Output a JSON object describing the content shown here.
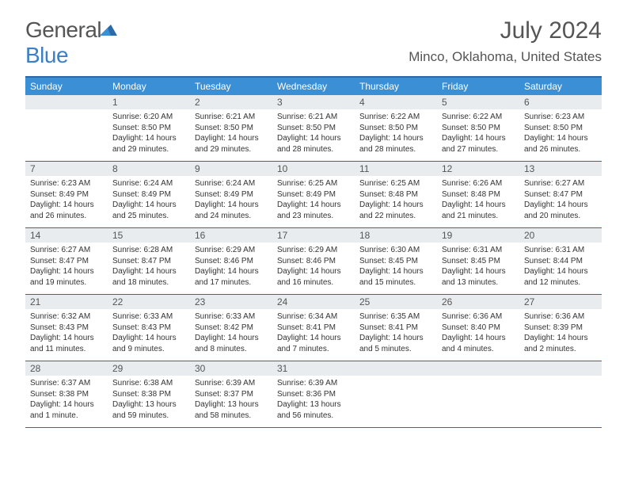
{
  "logo": {
    "text1": "General",
    "text2": "Blue"
  },
  "title": {
    "month_year": "July 2024",
    "location": "Minco, Oklahoma, United States"
  },
  "colors": {
    "header_bg": "#3b8fd4",
    "border": "#2b6aa8",
    "daynum_bg": "#e9ecee",
    "text": "#333333",
    "logo_gray": "#555555",
    "logo_blue": "#3b7fc4"
  },
  "day_names": [
    "Sunday",
    "Monday",
    "Tuesday",
    "Wednesday",
    "Thursday",
    "Friday",
    "Saturday"
  ],
  "weeks": [
    [
      {
        "n": "",
        "sunrise": "",
        "sunset": "",
        "daylight": ""
      },
      {
        "n": "1",
        "sunrise": "Sunrise: 6:20 AM",
        "sunset": "Sunset: 8:50 PM",
        "daylight": "Daylight: 14 hours and 29 minutes."
      },
      {
        "n": "2",
        "sunrise": "Sunrise: 6:21 AM",
        "sunset": "Sunset: 8:50 PM",
        "daylight": "Daylight: 14 hours and 29 minutes."
      },
      {
        "n": "3",
        "sunrise": "Sunrise: 6:21 AM",
        "sunset": "Sunset: 8:50 PM",
        "daylight": "Daylight: 14 hours and 28 minutes."
      },
      {
        "n": "4",
        "sunrise": "Sunrise: 6:22 AM",
        "sunset": "Sunset: 8:50 PM",
        "daylight": "Daylight: 14 hours and 28 minutes."
      },
      {
        "n": "5",
        "sunrise": "Sunrise: 6:22 AM",
        "sunset": "Sunset: 8:50 PM",
        "daylight": "Daylight: 14 hours and 27 minutes."
      },
      {
        "n": "6",
        "sunrise": "Sunrise: 6:23 AM",
        "sunset": "Sunset: 8:50 PM",
        "daylight": "Daylight: 14 hours and 26 minutes."
      }
    ],
    [
      {
        "n": "7",
        "sunrise": "Sunrise: 6:23 AM",
        "sunset": "Sunset: 8:49 PM",
        "daylight": "Daylight: 14 hours and 26 minutes."
      },
      {
        "n": "8",
        "sunrise": "Sunrise: 6:24 AM",
        "sunset": "Sunset: 8:49 PM",
        "daylight": "Daylight: 14 hours and 25 minutes."
      },
      {
        "n": "9",
        "sunrise": "Sunrise: 6:24 AM",
        "sunset": "Sunset: 8:49 PM",
        "daylight": "Daylight: 14 hours and 24 minutes."
      },
      {
        "n": "10",
        "sunrise": "Sunrise: 6:25 AM",
        "sunset": "Sunset: 8:49 PM",
        "daylight": "Daylight: 14 hours and 23 minutes."
      },
      {
        "n": "11",
        "sunrise": "Sunrise: 6:25 AM",
        "sunset": "Sunset: 8:48 PM",
        "daylight": "Daylight: 14 hours and 22 minutes."
      },
      {
        "n": "12",
        "sunrise": "Sunrise: 6:26 AM",
        "sunset": "Sunset: 8:48 PM",
        "daylight": "Daylight: 14 hours and 21 minutes."
      },
      {
        "n": "13",
        "sunrise": "Sunrise: 6:27 AM",
        "sunset": "Sunset: 8:47 PM",
        "daylight": "Daylight: 14 hours and 20 minutes."
      }
    ],
    [
      {
        "n": "14",
        "sunrise": "Sunrise: 6:27 AM",
        "sunset": "Sunset: 8:47 PM",
        "daylight": "Daylight: 14 hours and 19 minutes."
      },
      {
        "n": "15",
        "sunrise": "Sunrise: 6:28 AM",
        "sunset": "Sunset: 8:47 PM",
        "daylight": "Daylight: 14 hours and 18 minutes."
      },
      {
        "n": "16",
        "sunrise": "Sunrise: 6:29 AM",
        "sunset": "Sunset: 8:46 PM",
        "daylight": "Daylight: 14 hours and 17 minutes."
      },
      {
        "n": "17",
        "sunrise": "Sunrise: 6:29 AM",
        "sunset": "Sunset: 8:46 PM",
        "daylight": "Daylight: 14 hours and 16 minutes."
      },
      {
        "n": "18",
        "sunrise": "Sunrise: 6:30 AM",
        "sunset": "Sunset: 8:45 PM",
        "daylight": "Daylight: 14 hours and 15 minutes."
      },
      {
        "n": "19",
        "sunrise": "Sunrise: 6:31 AM",
        "sunset": "Sunset: 8:45 PM",
        "daylight": "Daylight: 14 hours and 13 minutes."
      },
      {
        "n": "20",
        "sunrise": "Sunrise: 6:31 AM",
        "sunset": "Sunset: 8:44 PM",
        "daylight": "Daylight: 14 hours and 12 minutes."
      }
    ],
    [
      {
        "n": "21",
        "sunrise": "Sunrise: 6:32 AM",
        "sunset": "Sunset: 8:43 PM",
        "daylight": "Daylight: 14 hours and 11 minutes."
      },
      {
        "n": "22",
        "sunrise": "Sunrise: 6:33 AM",
        "sunset": "Sunset: 8:43 PM",
        "daylight": "Daylight: 14 hours and 9 minutes."
      },
      {
        "n": "23",
        "sunrise": "Sunrise: 6:33 AM",
        "sunset": "Sunset: 8:42 PM",
        "daylight": "Daylight: 14 hours and 8 minutes."
      },
      {
        "n": "24",
        "sunrise": "Sunrise: 6:34 AM",
        "sunset": "Sunset: 8:41 PM",
        "daylight": "Daylight: 14 hours and 7 minutes."
      },
      {
        "n": "25",
        "sunrise": "Sunrise: 6:35 AM",
        "sunset": "Sunset: 8:41 PM",
        "daylight": "Daylight: 14 hours and 5 minutes."
      },
      {
        "n": "26",
        "sunrise": "Sunrise: 6:36 AM",
        "sunset": "Sunset: 8:40 PM",
        "daylight": "Daylight: 14 hours and 4 minutes."
      },
      {
        "n": "27",
        "sunrise": "Sunrise: 6:36 AM",
        "sunset": "Sunset: 8:39 PM",
        "daylight": "Daylight: 14 hours and 2 minutes."
      }
    ],
    [
      {
        "n": "28",
        "sunrise": "Sunrise: 6:37 AM",
        "sunset": "Sunset: 8:38 PM",
        "daylight": "Daylight: 14 hours and 1 minute."
      },
      {
        "n": "29",
        "sunrise": "Sunrise: 6:38 AM",
        "sunset": "Sunset: 8:38 PM",
        "daylight": "Daylight: 13 hours and 59 minutes."
      },
      {
        "n": "30",
        "sunrise": "Sunrise: 6:39 AM",
        "sunset": "Sunset: 8:37 PM",
        "daylight": "Daylight: 13 hours and 58 minutes."
      },
      {
        "n": "31",
        "sunrise": "Sunrise: 6:39 AM",
        "sunset": "Sunset: 8:36 PM",
        "daylight": "Daylight: 13 hours and 56 minutes."
      },
      {
        "n": "",
        "sunrise": "",
        "sunset": "",
        "daylight": ""
      },
      {
        "n": "",
        "sunrise": "",
        "sunset": "",
        "daylight": ""
      },
      {
        "n": "",
        "sunrise": "",
        "sunset": "",
        "daylight": ""
      }
    ]
  ]
}
